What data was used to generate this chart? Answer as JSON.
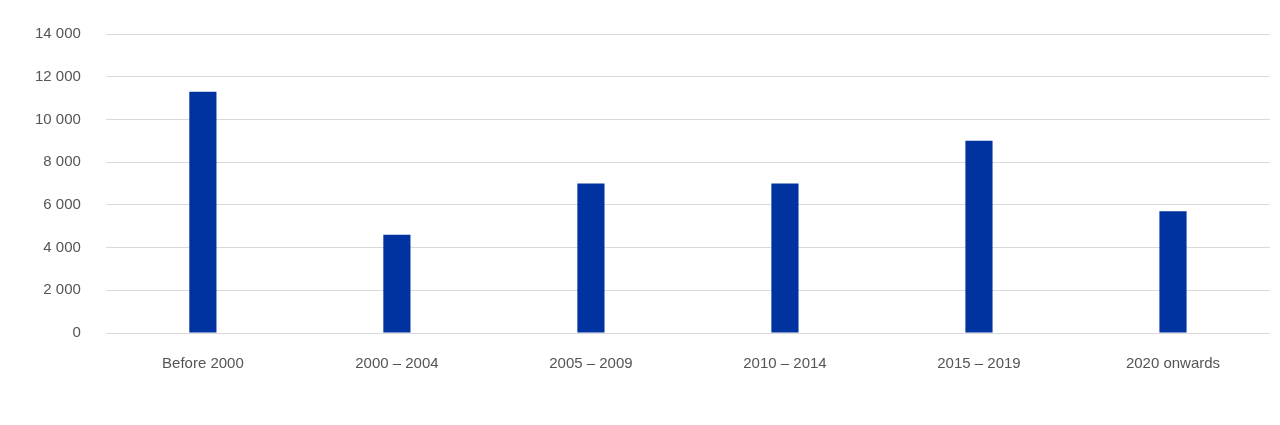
{
  "chart_data": {
    "type": "bar",
    "categories": [
      "Before 2000",
      "2000 – 2004",
      "2005 – 2009",
      "2010 – 2014",
      "2015 – 2019",
      "2020 onwards"
    ],
    "values": [
      11300,
      4600,
      7000,
      7000,
      9000,
      5700
    ],
    "color": "#0033a0",
    "ylim": [
      0,
      14000
    ],
    "yticks": [
      {
        "value": 0,
        "label": "0"
      },
      {
        "value": 2000,
        "label": "2 000"
      },
      {
        "value": 4000,
        "label": "4 000"
      },
      {
        "value": 6000,
        "label": "6 000"
      },
      {
        "value": 8000,
        "label": "8 000"
      },
      {
        "value": 10000,
        "label": "10 000"
      },
      {
        "value": 12000,
        "label": "12 000"
      },
      {
        "value": 14000,
        "label": "14 000"
      }
    ],
    "grid": "y"
  }
}
